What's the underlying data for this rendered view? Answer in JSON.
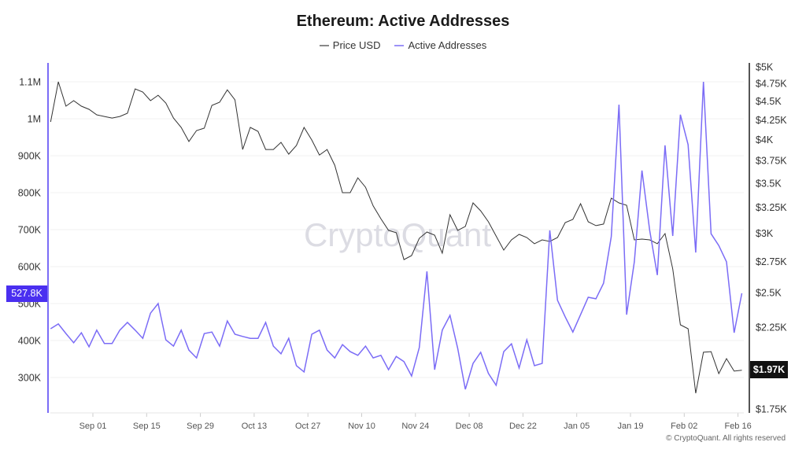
{
  "chart_data": {
    "type": "line",
    "title": "Ethereum: Active Addresses",
    "legend_position": "top-center",
    "grid": true,
    "watermark": "CryptoQuant",
    "copyright": "© CryptoQuant. All rights reserved",
    "x": [
      "2024-08-21",
      "2024-08-23",
      "2024-08-25",
      "2024-08-27",
      "2024-08-29",
      "2024-08-31",
      "2024-09-02",
      "2024-09-04",
      "2024-09-06",
      "2024-09-08",
      "2024-09-10",
      "2024-09-12",
      "2024-09-14",
      "2024-09-16",
      "2024-09-18",
      "2024-09-20",
      "2024-09-22",
      "2024-09-24",
      "2024-09-26",
      "2024-09-28",
      "2024-09-30",
      "2024-10-02",
      "2024-10-04",
      "2024-10-06",
      "2024-10-08",
      "2024-10-10",
      "2024-10-12",
      "2024-10-14",
      "2024-10-16",
      "2024-10-18",
      "2024-10-20",
      "2024-10-22",
      "2024-10-24",
      "2024-10-26",
      "2024-10-28",
      "2024-10-30",
      "2024-11-01",
      "2024-11-03",
      "2024-11-05",
      "2024-11-07",
      "2024-11-09",
      "2024-11-11",
      "2024-11-13",
      "2024-11-15",
      "2024-11-17",
      "2024-11-19",
      "2024-11-21",
      "2024-11-23",
      "2024-11-25",
      "2024-11-27",
      "2024-11-29",
      "2024-12-01",
      "2024-12-03",
      "2024-12-05",
      "2024-12-07",
      "2024-12-09",
      "2024-12-11",
      "2024-12-13",
      "2024-12-15",
      "2024-12-17",
      "2024-12-19",
      "2024-12-21",
      "2024-12-23",
      "2024-12-25",
      "2024-12-27",
      "2024-12-29",
      "2024-12-31",
      "2025-01-02",
      "2025-01-04",
      "2025-01-06",
      "2025-01-08",
      "2025-01-10",
      "2025-01-12",
      "2025-01-14",
      "2025-01-16",
      "2025-01-18",
      "2025-01-20",
      "2025-01-22",
      "2025-01-24",
      "2025-01-26",
      "2025-01-28",
      "2025-01-30",
      "2025-02-01",
      "2025-02-03",
      "2025-02-05",
      "2025-02-07",
      "2025-02-09",
      "2025-02-11",
      "2025-02-13",
      "2025-02-15",
      "2025-02-17"
    ],
    "series": [
      {
        "name": "Price USD",
        "axis": "right",
        "color": "#333333",
        "values": [
          4223,
          4776,
          4431,
          4507,
          4431,
          4389,
          4315,
          4294,
          4273,
          4294,
          4336,
          4673,
          4628,
          4507,
          4583,
          4474,
          4273,
          4152,
          3976,
          4112,
          4142,
          4442,
          4485,
          4660,
          4518,
          3880,
          4152,
          4102,
          3880,
          3880,
          3966,
          3825,
          3928,
          4152,
          3995,
          3815,
          3880,
          3697,
          3398,
          3398,
          3557,
          3455,
          3263,
          3137,
          3027,
          3005,
          2767,
          2801,
          2954,
          3012,
          2983,
          2822,
          3176,
          3027,
          3064,
          3293,
          3214,
          3108,
          2975,
          2849,
          2940,
          2990,
          2961,
          2905,
          2940,
          2926,
          2961,
          3100,
          3130,
          3285,
          3108,
          3071,
          3086,
          3341,
          3293,
          3269,
          2940,
          2947,
          2940,
          2905,
          2997,
          2689,
          2265,
          2238,
          1836,
          2082,
          2086,
          1950,
          2042,
          1965,
          1970
        ]
      },
      {
        "name": "Active Addresses",
        "axis": "left",
        "color": "#7b6cf6",
        "values": [
          432000,
          445000,
          419000,
          394000,
          421000,
          383000,
          428000,
          392000,
          392000,
          428000,
          449000,
          428000,
          406000,
          474000,
          500000,
          402000,
          385000,
          428000,
          374000,
          353000,
          419000,
          423000,
          385000,
          453000,
          417000,
          411000,
          406000,
          406000,
          449000,
          385000,
          364000,
          406000,
          332000,
          315000,
          417000,
          428000,
          374000,
          353000,
          389000,
          370000,
          360000,
          385000,
          353000,
          360000,
          321000,
          357000,
          343000,
          304000,
          381000,
          587000,
          321000,
          428000,
          468000,
          379000,
          268000,
          338000,
          368000,
          311000,
          279000,
          370000,
          391000,
          326000,
          402000,
          332000,
          338000,
          698000,
          509000,
          464000,
          423000,
          470000,
          517000,
          513000,
          555000,
          681000,
          1038000,
          470000,
          613000,
          860000,
          698000,
          577000,
          928000,
          683000,
          1011000,
          930000,
          638000,
          1100000,
          689000,
          657000,
          613000,
          421000,
          527800
        ]
      }
    ],
    "left_axis": {
      "ticks": [
        300000,
        400000,
        500000,
        600000,
        700000,
        800000,
        900000,
        1000000,
        1100000
      ],
      "tick_labels": [
        "300K",
        "400K",
        "500K",
        "600K",
        "700K",
        "800K",
        "900K",
        "1M",
        "1.1M"
      ],
      "current_label": "527.8K",
      "color": "#7b6cf6",
      "badge_color": "#4a2ff0"
    },
    "right_axis": {
      "scale": "log",
      "ticks": [
        1750,
        2250,
        2500,
        2750,
        3000,
        3250,
        3500,
        3750,
        4000,
        4250,
        4500,
        4750,
        5000
      ],
      "tick_labels": [
        "$1.75K",
        "$2.25K",
        "$2.5K",
        "$2.75K",
        "$3K",
        "$3.25K",
        "$3.5K",
        "$3.75K",
        "$4K",
        "$4.25K",
        "$4.5K",
        "$4.75K",
        "$5K"
      ],
      "current_label": "$1.97K"
    },
    "x_axis": {
      "ticks": [
        "2024-09-01",
        "2024-09-15",
        "2024-09-29",
        "2024-10-13",
        "2024-10-27",
        "2024-11-10",
        "2024-11-24",
        "2024-12-08",
        "2024-12-22",
        "2025-01-05",
        "2025-01-19",
        "2025-02-02",
        "2025-02-16"
      ],
      "tick_labels": [
        "Sep 01",
        "Sep 15",
        "Sep 29",
        "Oct 13",
        "Oct 27",
        "Nov 10",
        "Nov 24",
        "Dec 08",
        "Dec 22",
        "Jan 05",
        "Jan 19",
        "Feb 02",
        "Feb 16"
      ]
    }
  }
}
